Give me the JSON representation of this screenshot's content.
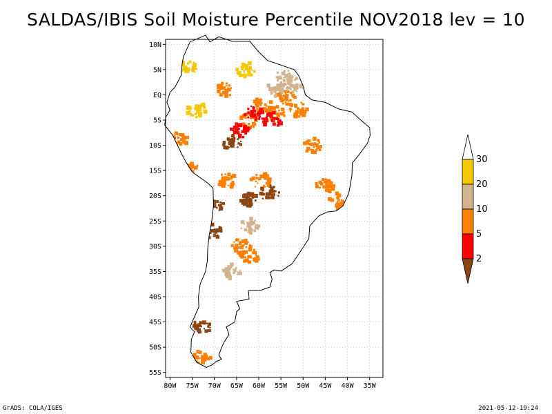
{
  "title": "SALDAS/IBIS Soil Moisture Percentile NOV2018 lev = 10",
  "footer": {
    "left": "GrADS: COLA/IGES",
    "right": "2021-05-12-19:24"
  },
  "map": {
    "lat_ticks": [
      {
        "lat": 10,
        "label": "10N"
      },
      {
        "lat": 5,
        "label": "5N"
      },
      {
        "lat": 0,
        "label": "EQ"
      },
      {
        "lat": -5,
        "label": "5S"
      },
      {
        "lat": -10,
        "label": "10S"
      },
      {
        "lat": -15,
        "label": "15S"
      },
      {
        "lat": -20,
        "label": "20S"
      },
      {
        "lat": -25,
        "label": "25S"
      },
      {
        "lat": -30,
        "label": "30S"
      },
      {
        "lat": -35,
        "label": "35S"
      },
      {
        "lat": -40,
        "label": "40S"
      },
      {
        "lat": -45,
        "label": "45S"
      },
      {
        "lat": -50,
        "label": "50S"
      },
      {
        "lat": -55,
        "label": "55S"
      }
    ],
    "lon_ticks": [
      {
        "lon": -80,
        "label": "80W"
      },
      {
        "lon": -75,
        "label": "75W"
      },
      {
        "lon": -70,
        "label": "70W"
      },
      {
        "lon": -65,
        "label": "65W"
      },
      {
        "lon": -60,
        "label": "60W"
      },
      {
        "lon": -55,
        "label": "55W"
      },
      {
        "lon": -50,
        "label": "50W"
      },
      {
        "lon": -45,
        "label": "45W"
      },
      {
        "lon": -40,
        "label": "40W"
      },
      {
        "lon": -35,
        "label": "35W"
      }
    ]
  },
  "legend": {
    "bins": [
      {
        "label": "30",
        "color": "#ffffff"
      },
      {
        "label": "20",
        "color": "#f5c800"
      },
      {
        "label": "10",
        "color": "#d2b48c"
      },
      {
        "label": "5",
        "color": "#ff8000"
      },
      {
        "label": "2",
        "color": "#ff0000"
      },
      {
        "color": "#8b4513"
      }
    ]
  },
  "chart_data": {
    "type": "heatmap",
    "title": "SALDAS/IBIS Soil Moisture Percentile NOV2018 lev = 10",
    "xlim": [
      -81,
      -32
    ],
    "ylim": [
      -56,
      11
    ],
    "grid": true,
    "legend_position": "right",
    "color_scale": [
      {
        "range": "<2",
        "color": "#8b4513"
      },
      {
        "range": "2-5",
        "color": "#ff0000"
      },
      {
        "range": "5-10",
        "color": "#ff8000"
      },
      {
        "range": "10-20",
        "color": "#d2b48c"
      },
      {
        "range": "20-30",
        "color": "#f5c800"
      },
      {
        "range": ">30",
        "color": "#ffffff"
      }
    ],
    "regions": [
      {
        "lon": -54,
        "lat": 3.5,
        "category": "10-20"
      },
      {
        "lon": -52,
        "lat": 2,
        "category": "10-20"
      },
      {
        "lon": -56,
        "lat": 1,
        "category": "10-20"
      },
      {
        "lon": -53.5,
        "lat": -0.5,
        "category": "5-10"
      },
      {
        "lon": -59,
        "lat": -2,
        "category": "5-10"
      },
      {
        "lon": -62,
        "lat": -5,
        "category": "5-10"
      },
      {
        "lon": -56,
        "lat": -3.5,
        "category": "5-10"
      },
      {
        "lon": -51,
        "lat": -3,
        "category": "5-10"
      },
      {
        "lon": -61,
        "lat": -3.5,
        "category": "2-5"
      },
      {
        "lon": -57,
        "lat": -5,
        "category": "2-5"
      },
      {
        "lon": -64,
        "lat": -7,
        "category": "2-5"
      },
      {
        "lon": -66,
        "lat": -9.5,
        "category": "<2"
      },
      {
        "lon": -57.5,
        "lat": -19.5,
        "category": "<2"
      },
      {
        "lon": -59.5,
        "lat": -17,
        "category": "5-10"
      },
      {
        "lon": -62,
        "lat": -21,
        "category": "<2"
      },
      {
        "lon": -67,
        "lat": -17,
        "category": "5-10"
      },
      {
        "lon": -75.5,
        "lat": -15,
        "category": "5-10"
      },
      {
        "lon": -78,
        "lat": -9,
        "category": "5-10"
      },
      {
        "lon": -70,
        "lat": -22,
        "category": "<2"
      },
      {
        "lon": -70.5,
        "lat": -27,
        "category": "<2"
      },
      {
        "lon": -62,
        "lat": -26,
        "category": "10-20"
      },
      {
        "lon": -64,
        "lat": -30,
        "category": "5-10"
      },
      {
        "lon": -66,
        "lat": -35,
        "category": "10-20"
      },
      {
        "lon": -62,
        "lat": -32,
        "category": "5-10"
      },
      {
        "lon": -76,
        "lat": 5.5,
        "category": "20-30"
      },
      {
        "lon": -63,
        "lat": 5,
        "category": "20-30"
      },
      {
        "lon": -68,
        "lat": 1,
        "category": "5-10"
      },
      {
        "lon": -74,
        "lat": -3,
        "category": "20-30"
      },
      {
        "lon": -48,
        "lat": -10,
        "category": "5-10"
      },
      {
        "lon": -45,
        "lat": -18,
        "category": "5-10"
      },
      {
        "lon": -42,
        "lat": -21,
        "category": "5-10"
      },
      {
        "lon": -73,
        "lat": -46,
        "category": "<2"
      },
      {
        "lon": -73,
        "lat": -52,
        "category": "5-10"
      }
    ]
  }
}
